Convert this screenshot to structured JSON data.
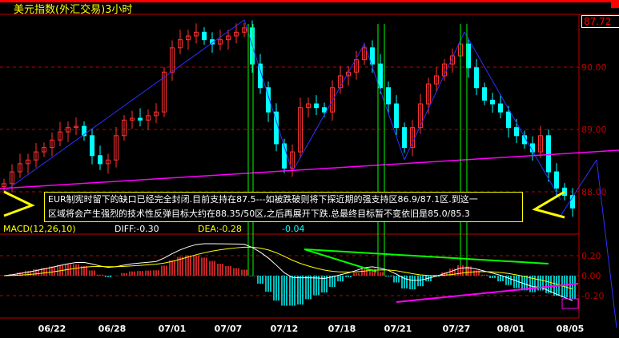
{
  "title": "美元指数(外汇交易)3小时",
  "current_price": "87.72",
  "annotation": [
    "EUR制宪时留下的缺口已经完全封闭.目前支持在87.5---如被跌破则将下探近期的强支持区86.9/87.1区.到这一",
    "区域将会产生强烈的技术性反弹目标大约在88.35/50区,之后再展开下跌.总最终目标暂不变依旧是85.0/85.3"
  ],
  "macd": {
    "label": "MACD(12,26,10)",
    "diff": "DIFF:-0.30",
    "dea": "DEA:-0.28",
    "macd": "-0.04"
  },
  "colors": {
    "up": "#ff3232",
    "down": "#00ffff",
    "axis": "#c00000",
    "trend": "#3030ff",
    "support": "#ff00ff",
    "marker": "#00ff00",
    "text": "#ffff00"
  },
  "chart_data": {
    "type": "candlestick",
    "price_ticks": [
      "90.00",
      "89.00",
      "88.00"
    ],
    "macd_ticks": [
      "0.20",
      "0.00",
      "-0.20"
    ],
    "x_ticks": [
      "06/22",
      "06/28",
      "07/01",
      "07/07",
      "07/12",
      "07/18",
      "07/21",
      "07/27",
      "08/01",
      "08/05"
    ],
    "closes": [
      88.13,
      88.32,
      88.45,
      88.51,
      88.64,
      88.71,
      88.83,
      88.96,
      89.03,
      89.05,
      88.9,
      88.58,
      88.45,
      88.51,
      88.9,
      89.15,
      89.18,
      89.15,
      89.22,
      89.28,
      89.92,
      90.31,
      90.44,
      90.5,
      90.56,
      90.44,
      90.37,
      90.44,
      90.5,
      90.56,
      90.63,
      90.05,
      89.67,
      89.28,
      88.77,
      88.38,
      88.64,
      89.35,
      89.41,
      89.35,
      89.28,
      89.67,
      89.86,
      89.92,
      90.12,
      90.31,
      90.05,
      89.67,
      89.41,
      89.03,
      88.71,
      89.03,
      89.41,
      89.73,
      89.86,
      90.05,
      90.18,
      90.37,
      89.99,
      89.67,
      89.47,
      89.41,
      89.28,
      89.03,
      88.9,
      88.77,
      88.64,
      88.9,
      88.32,
      88.06,
      87.94,
      87.74
    ]
  }
}
